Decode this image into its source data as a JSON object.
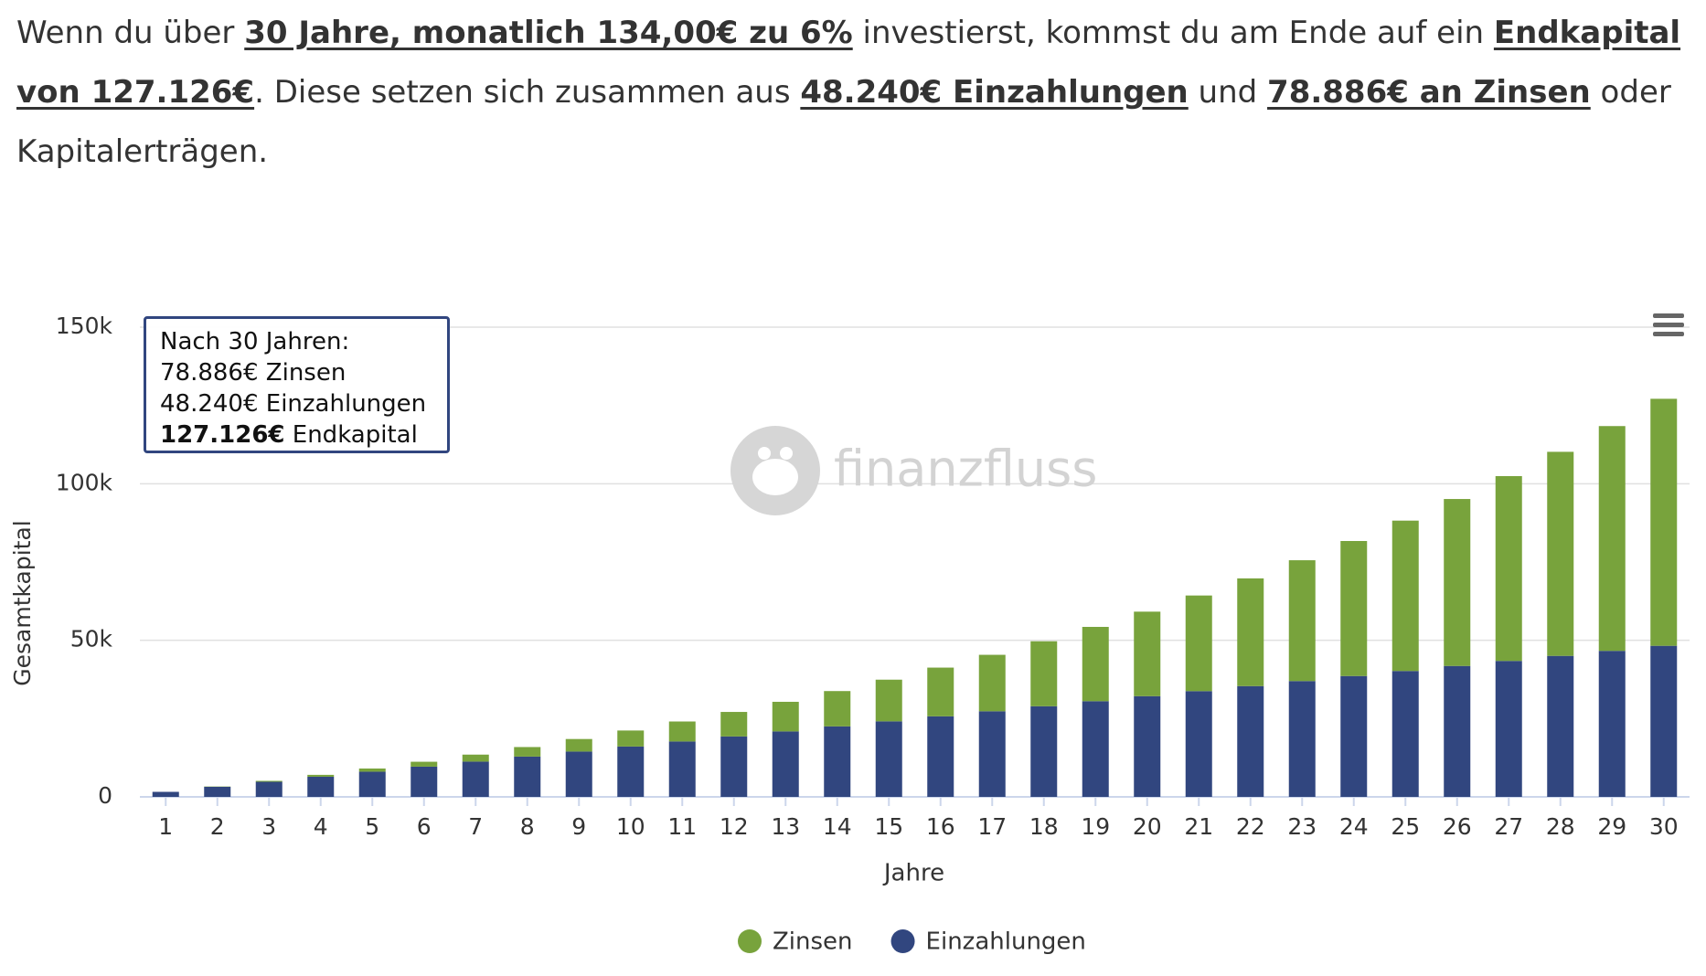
{
  "intro": [
    {
      "text": "Wenn du über ",
      "bold": false
    },
    {
      "text": "30 Jahre, monatlich 134,00€ zu 6%",
      "bold": true
    },
    {
      "text": " investierst, kommst du am Ende auf ein ",
      "bold": false
    },
    {
      "text": "Endkapital von 127.126€",
      "bold": true
    },
    {
      "text": ". Diese setzen sich zusammen aus ",
      "bold": false
    },
    {
      "text": "48.240€ Einzahlungen",
      "bold": true
    },
    {
      "text": " und ",
      "bold": false
    },
    {
      "text": "78.886€ an Zinsen",
      "bold": true
    },
    {
      "text": " oder Kapitalerträgen.",
      "bold": false
    }
  ],
  "chart_data": {
    "type": "stacked_bar",
    "watermark": "finanzfluss",
    "tooltip": {
      "title": "Nach 30 Jahren:",
      "lines": [
        "78.886€ Zinsen",
        "48.240€ Einzahlungen"
      ],
      "total_value": "127.126€",
      "total_label": " Endkapital"
    },
    "x_label": "Jahre",
    "y_label": "Gesamtkapital",
    "categories": [
      "1",
      "2",
      "3",
      "4",
      "5",
      "6",
      "7",
      "8",
      "9",
      "10",
      "11",
      "12",
      "13",
      "14",
      "15",
      "16",
      "17",
      "18",
      "19",
      "20",
      "21",
      "22",
      "23",
      "24",
      "25",
      "26",
      "27",
      "28",
      "29",
      "30"
    ],
    "series": [
      {
        "name": "Zinsen",
        "color": "#78a33c",
        "values": [
          0,
          96,
          295,
          602,
          1024,
          1568,
          2241,
          3051,
          4006,
          5115,
          6386,
          7831,
          9458,
          11280,
          13308,
          15553,
          18030,
          20752,
          23734,
          26991,
          30540,
          34399,
          38585,
          43119,
          48022,
          53315,
          59023,
          65169,
          71781,
          78886
        ]
      },
      {
        "name": "Einzahlungen",
        "color": "#31467f",
        "values": [
          1608,
          3216,
          4824,
          6432,
          8040,
          9648,
          11256,
          12864,
          14472,
          16080,
          17688,
          19296,
          20904,
          22512,
          24120,
          25728,
          27336,
          28944,
          30552,
          32160,
          33768,
          35376,
          36984,
          38592,
          40200,
          41808,
          43416,
          45024,
          46632,
          48240
        ]
      }
    ],
    "ylim": [
      0,
      150000
    ],
    "yticks": [
      0,
      {
        "value": 50000,
        "label": "50k"
      },
      {
        "value": 100000,
        "label": "100k"
      },
      {
        "value": 150000,
        "label": "150k"
      }
    ],
    "grid": true,
    "legend": "bottom"
  }
}
